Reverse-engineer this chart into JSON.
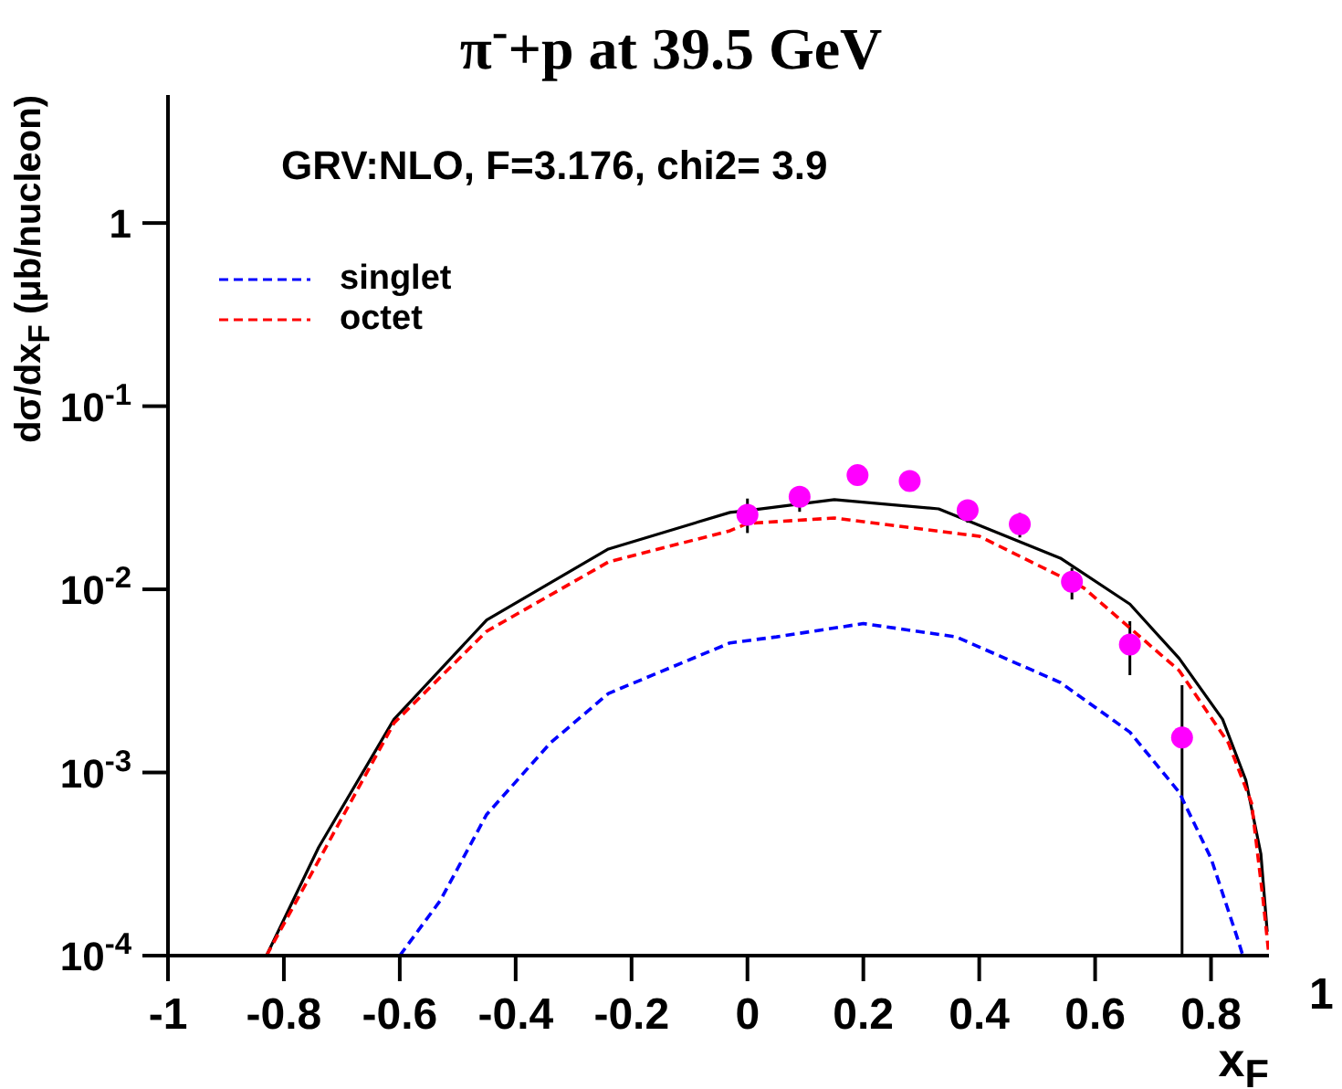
{
  "chart_data": {
    "type": "scatter",
    "title": "π$^{-}$+p at 39.5 GeV",
    "xlabel": "x$_{F}$",
    "ylabel": "dσ/dx$_{F}$ (μb/nucleon)",
    "annotations": [
      "GRV:NLO, F=3.176, chi2= 3.9",
      "1"
    ],
    "log": "y",
    "xlim": [
      -1,
      0.9
    ],
    "xticks": [
      -1,
      -0.8,
      -0.6,
      -0.4,
      -0.2,
      0,
      0.2,
      0.4,
      0.6,
      0.8
    ],
    "ylim": [
      0.0001,
      5
    ],
    "yticks": [
      {
        "value": 0.0001,
        "label": "10$^{-4}$"
      },
      {
        "value": 0.001,
        "label": "10$^{-3}$"
      },
      {
        "value": 0.01,
        "label": "10$^{-2}$"
      },
      {
        "value": 0.1,
        "label": "10$^{-1}$"
      },
      1
    ],
    "grid": false,
    "legend": "top left",
    "series": [
      {
        "color": "#ff00ff",
        "marker": "circle",
        "x": [
          0,
          0.09,
          0.19,
          0.28,
          0.38,
          0.47,
          0.56,
          0.66,
          0.75
        ],
        "values": [
          0.0255,
          0.032,
          0.042,
          0.039,
          0.027,
          0.0227,
          0.011,
          0.005,
          0.00155
        ],
        "errors": [
          [
            0.0203,
            0.0313
          ],
          [
            0.0265,
            0.0366
          ],
          null,
          null,
          [
            0.0231,
            0.0297
          ],
          [
            0.0192,
            0.0261
          ],
          [
            0.0088,
            0.0131
          ],
          [
            0.0034,
            0.0067
          ],
          [
            0.0001,
            0.003
          ]
        ]
      },
      {
        "type": "line",
        "color": "#000000",
        "line_style": "solid",
        "x": [
          -0.83,
          -0.74,
          -0.61,
          -0.45,
          -0.24,
          -0.03,
          0,
          0.15,
          0.33,
          0.54,
          0.66,
          0.745,
          0.82,
          0.86,
          0.886,
          0.897
        ],
        "values": [
          0.0001,
          0.00039,
          0.00195,
          0.0068,
          0.0166,
          0.0263,
          0.0269,
          0.0309,
          0.0275,
          0.0148,
          0.0083,
          0.0042,
          0.00195,
          0.00091,
          0.00036,
          0.000135
        ]
      },
      {
        "type": "line",
        "name": "singlet",
        "color": "#0000ff",
        "line_style": "dashed",
        "x": [
          -0.6,
          -0.53,
          -0.45,
          -0.34,
          -0.24,
          -0.03,
          0.05,
          0.2,
          0.36,
          0.54,
          0.66,
          0.745,
          0.8,
          0.845,
          0.855
        ],
        "values": [
          0.0001,
          0.0002,
          0.00059,
          0.00145,
          0.0027,
          0.0051,
          0.0055,
          0.0065,
          0.0055,
          0.0031,
          0.00166,
          0.00078,
          0.00034,
          0.000126,
          0.0001
        ]
      },
      {
        "type": "line",
        "name": "octet",
        "color": "#ff0000",
        "line_style": "dashed",
        "x": [
          -0.83,
          -0.61,
          -0.45,
          -0.24,
          -0.03,
          0,
          0.15,
          0.4,
          0.58,
          0.745,
          0.83,
          0.87,
          0.89,
          0.9
        ],
        "values": [
          0.0001,
          0.00186,
          0.0059,
          0.0141,
          0.0209,
          0.0229,
          0.0245,
          0.0195,
          0.0102,
          0.0036,
          0.00145,
          0.00068,
          0.0002,
          0.0001
        ]
      }
    ]
  }
}
